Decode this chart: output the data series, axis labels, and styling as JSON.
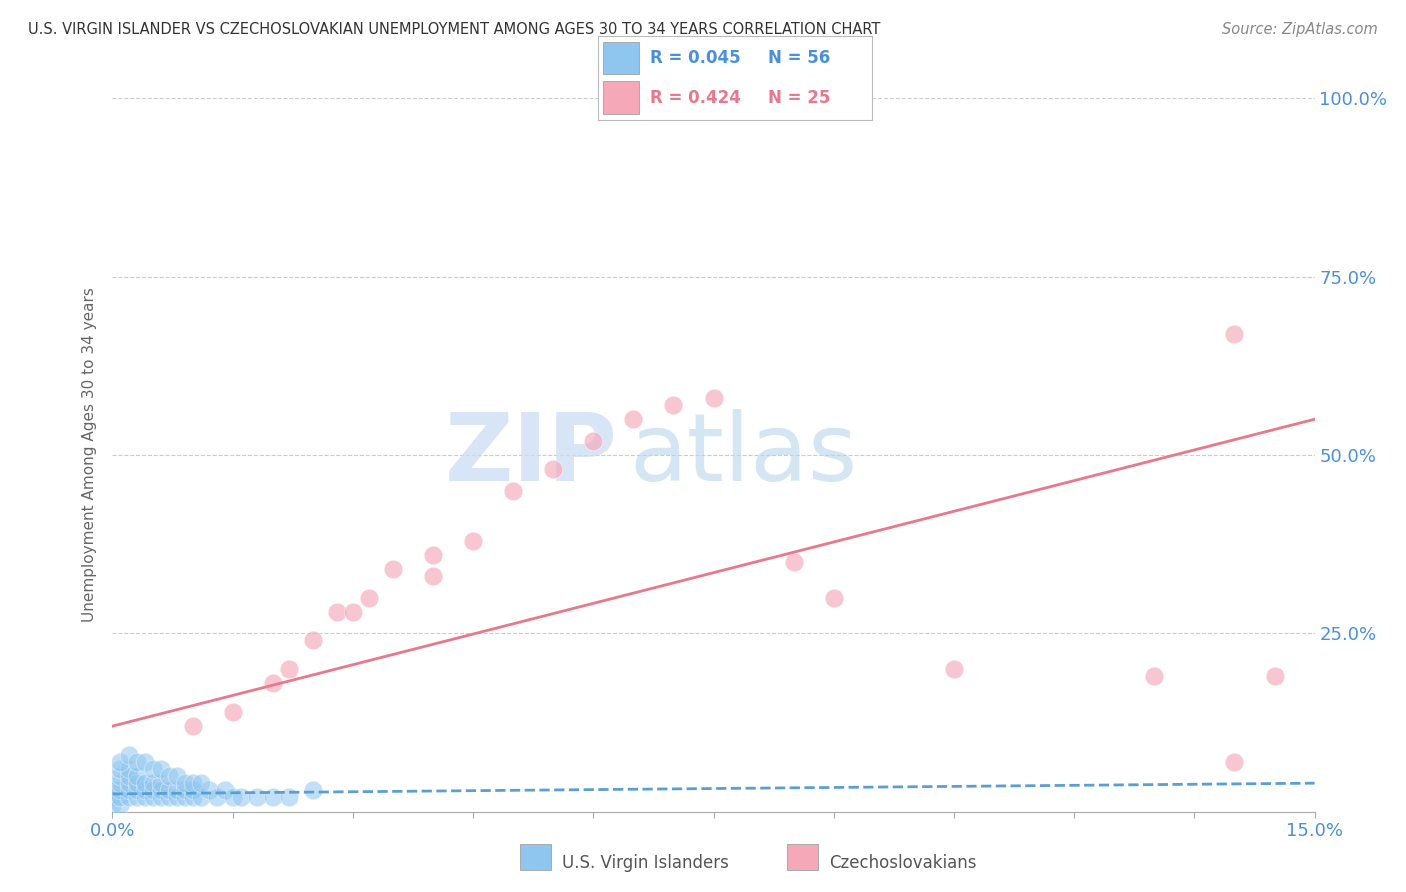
{
  "title": "U.S. VIRGIN ISLANDER VS CZECHOSLOVAKIAN UNEMPLOYMENT AMONG AGES 30 TO 34 YEARS CORRELATION CHART",
  "source": "Source: ZipAtlas.com",
  "xmin": 0.0,
  "xmax": 0.15,
  "ymin": 0.0,
  "ymax": 1.0,
  "legend_r1": "R = 0.045",
  "legend_n1": "N = 56",
  "legend_r2": "R = 0.424",
  "legend_n2": "N = 25",
  "color_blue": "#8ec6f0",
  "color_pink": "#f5a8b8",
  "color_blue_line": "#5a9fd4",
  "color_pink_line": "#e8788a",
  "color_text_blue": "#4a90d9",
  "color_text_pink": "#e8788a",
  "color_grid": "#cccccc",
  "watermark_zip": "ZIP",
  "watermark_atlas": "atlas",
  "ylabel": "Unemployment Among Ages 30 to 34 years",
  "legend1_label": "U.S. Virgin Islanders",
  "legend2_label": "Czechoslovakians",
  "uv_x": [
    0.0,
    0.0,
    0.0,
    0.001,
    0.001,
    0.001,
    0.001,
    0.001,
    0.001,
    0.002,
    0.002,
    0.002,
    0.002,
    0.002,
    0.003,
    0.003,
    0.003,
    0.003,
    0.004,
    0.004,
    0.004,
    0.005,
    0.005,
    0.005,
    0.006,
    0.006,
    0.006,
    0.007,
    0.007,
    0.008,
    0.008,
    0.009,
    0.009,
    0.01,
    0.01,
    0.011,
    0.012,
    0.013,
    0.014,
    0.015,
    0.016,
    0.018,
    0.02,
    0.022,
    0.025,
    0.001,
    0.002,
    0.003,
    0.004,
    0.005,
    0.006,
    0.007,
    0.008,
    0.009,
    0.01,
    0.011
  ],
  "uv_y": [
    0.01,
    0.02,
    0.03,
    0.01,
    0.02,
    0.03,
    0.04,
    0.05,
    0.06,
    0.02,
    0.03,
    0.04,
    0.05,
    0.06,
    0.02,
    0.03,
    0.04,
    0.05,
    0.02,
    0.03,
    0.04,
    0.02,
    0.03,
    0.04,
    0.02,
    0.03,
    0.04,
    0.02,
    0.03,
    0.02,
    0.03,
    0.02,
    0.03,
    0.02,
    0.03,
    0.02,
    0.03,
    0.02,
    0.03,
    0.02,
    0.02,
    0.02,
    0.02,
    0.02,
    0.03,
    0.07,
    0.08,
    0.07,
    0.07,
    0.06,
    0.06,
    0.05,
    0.05,
    0.04,
    0.04,
    0.04
  ],
  "cz_x": [
    0.01,
    0.015,
    0.02,
    0.022,
    0.025,
    0.028,
    0.03,
    0.032,
    0.035,
    0.04,
    0.04,
    0.045,
    0.05,
    0.055,
    0.06,
    0.065,
    0.07,
    0.075,
    0.085,
    0.09,
    0.105,
    0.13,
    0.14,
    0.14,
    0.145
  ],
  "cz_y": [
    0.12,
    0.14,
    0.18,
    0.2,
    0.24,
    0.28,
    0.28,
    0.3,
    0.34,
    0.33,
    0.36,
    0.38,
    0.45,
    0.48,
    0.52,
    0.55,
    0.57,
    0.58,
    0.35,
    0.3,
    0.2,
    0.19,
    0.07,
    0.67,
    0.19
  ],
  "uv_trend_x": [
    0.0,
    0.15
  ],
  "uv_trend_y": [
    0.025,
    0.04
  ],
  "cz_trend_x": [
    0.0,
    0.15
  ],
  "cz_trend_y": [
    0.12,
    0.55
  ]
}
